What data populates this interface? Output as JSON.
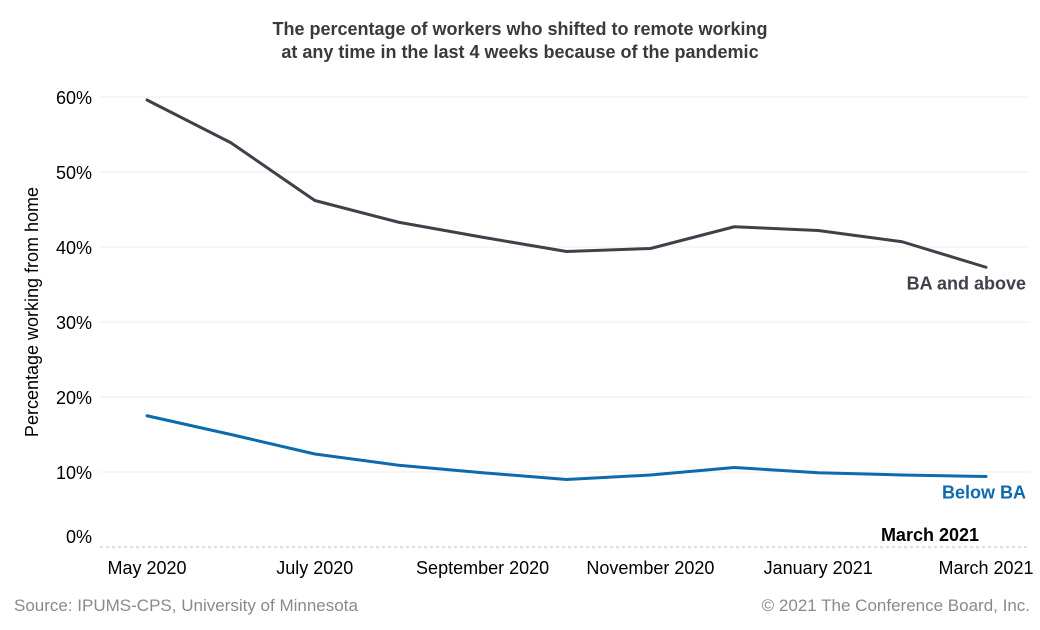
{
  "chart_data": {
    "type": "line",
    "title_lines": [
      "The percentage of workers who shifted to remote working",
      "at any time in the last 4 weeks because of the pandemic"
    ],
    "ylabel": "Percentage working from home",
    "xlabel": "",
    "ylim": [
      0,
      60
    ],
    "y_ticks": [
      "0%",
      "10%",
      "20%",
      "30%",
      "40%",
      "50%",
      "60%"
    ],
    "x": [
      "May 2020",
      "Jun 2020",
      "Jul 2020",
      "Aug 2020",
      "Sep 2020",
      "Oct 2020",
      "Nov 2020",
      "Dec 2020",
      "Jan 2021",
      "Feb 2021",
      "Mar 2021"
    ],
    "x_tick_labels": [
      "May 2020",
      "July 2020",
      "September 2020",
      "November 2020",
      "January 2021",
      "March 2021"
    ],
    "series": [
      {
        "name": "BA and above",
        "color": "#3d4149",
        "values": [
          59.6,
          53.9,
          46.2,
          43.3,
          41.3,
          39.4,
          39.8,
          42.7,
          42.2,
          40.7,
          37.3
        ]
      },
      {
        "name": "Below BA",
        "color": "#0d6aad",
        "values": [
          17.5,
          15.0,
          12.4,
          10.9,
          9.9,
          9.0,
          9.6,
          10.6,
          9.9,
          9.6,
          9.4
        ]
      }
    ],
    "annotation": "March 2021",
    "grid": true,
    "legend": "inline labels at right end of each line"
  },
  "footer": {
    "source": "Source: IPUMS-CPS, University of Minnesota",
    "copyright": "© 2021 The Conference Board, Inc."
  }
}
